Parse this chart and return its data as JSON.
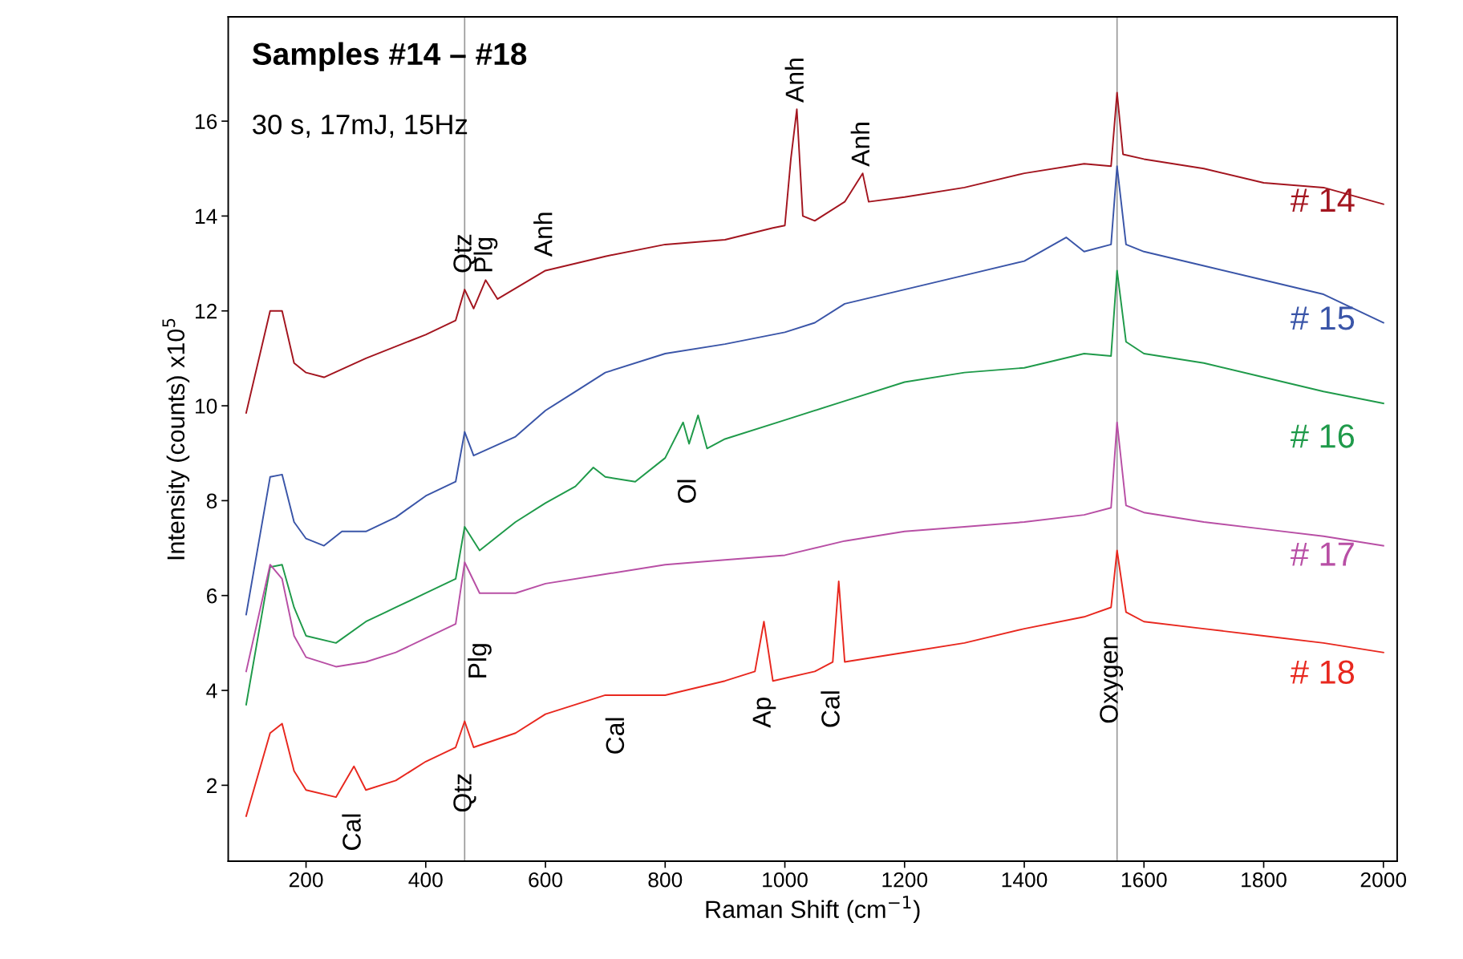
{
  "chart_data": {
    "type": "line",
    "title": "Samples #14 – #18",
    "subtitle": "30 s, 17mJ, 15Hz",
    "xlabel": "Raman Shift (cm$^{−1}$)",
    "ylabel": "Intensity (counts) x10$^{5}$",
    "xlim": [
      70,
      2023
    ],
    "ylim": [
      0.4,
      18.2
    ],
    "xticks": [
      200,
      400,
      600,
      800,
      1000,
      1200,
      1400,
      1600,
      1800,
      2000
    ],
    "yticks": [
      2,
      4,
      6,
      8,
      10,
      12,
      14,
      16
    ],
    "grid": false,
    "legend": "right",
    "series": [
      {
        "name": "# 14",
        "color": "#a3151f",
        "x": [
          100,
          140,
          160,
          180,
          200,
          230,
          300,
          400,
          450,
          465,
          480,
          500,
          520,
          600,
          700,
          800,
          900,
          980,
          1000,
          1010,
          1020,
          1030,
          1050,
          1100,
          1130,
          1140,
          1200,
          1300,
          1400,
          1500,
          1545,
          1555,
          1565,
          1600,
          1700,
          1800,
          1900,
          2000
        ],
        "values": [
          9.85,
          12.0,
          12.0,
          10.9,
          10.7,
          10.6,
          11.0,
          11.5,
          11.8,
          12.45,
          12.05,
          12.65,
          12.25,
          12.85,
          13.15,
          13.4,
          13.5,
          13.75,
          13.8,
          15.2,
          16.25,
          14.0,
          13.9,
          14.3,
          14.9,
          14.3,
          14.4,
          14.6,
          14.9,
          15.1,
          15.05,
          16.6,
          15.3,
          15.2,
          15.0,
          14.7,
          14.6,
          14.25
        ]
      },
      {
        "name": "# 15",
        "color": "#3a55a8",
        "x": [
          100,
          140,
          160,
          180,
          200,
          230,
          260,
          300,
          350,
          400,
          450,
          465,
          480,
          550,
          600,
          650,
          700,
          800,
          900,
          1000,
          1050,
          1100,
          1200,
          1300,
          1400,
          1470,
          1500,
          1545,
          1555,
          1570,
          1600,
          1700,
          1800,
          1900,
          2000
        ],
        "values": [
          5.6,
          8.5,
          8.55,
          7.55,
          7.2,
          7.05,
          7.35,
          7.35,
          7.65,
          8.1,
          8.4,
          9.45,
          8.95,
          9.35,
          9.9,
          10.3,
          10.7,
          11.1,
          11.3,
          11.55,
          11.75,
          12.15,
          12.45,
          12.75,
          13.05,
          13.55,
          13.25,
          13.4,
          15.05,
          13.4,
          13.25,
          12.95,
          12.65,
          12.35,
          11.75
        ]
      },
      {
        "name": "# 16",
        "color": "#1f9a4a",
        "x": [
          100,
          140,
          160,
          180,
          200,
          250,
          300,
          350,
          400,
          450,
          465,
          490,
          550,
          600,
          650,
          680,
          700,
          750,
          800,
          830,
          840,
          855,
          870,
          900,
          1000,
          1100,
          1200,
          1300,
          1400,
          1500,
          1545,
          1555,
          1570,
          1600,
          1700,
          1800,
          1900,
          2000
        ],
        "values": [
          3.7,
          6.6,
          6.65,
          5.75,
          5.15,
          5.0,
          5.45,
          5.75,
          6.05,
          6.35,
          7.45,
          6.95,
          7.55,
          7.95,
          8.3,
          8.7,
          8.5,
          8.4,
          8.9,
          9.65,
          9.2,
          9.8,
          9.1,
          9.3,
          9.7,
          10.1,
          10.5,
          10.7,
          10.8,
          11.1,
          11.05,
          12.85,
          11.35,
          11.1,
          10.9,
          10.6,
          10.3,
          10.05
        ]
      },
      {
        "name": "# 17",
        "color": "#b84fa5",
        "x": [
          100,
          140,
          160,
          180,
          200,
          250,
          300,
          350,
          400,
          450,
          465,
          490,
          550,
          600,
          700,
          800,
          900,
          1000,
          1100,
          1200,
          1300,
          1400,
          1500,
          1545,
          1555,
          1570,
          1600,
          1700,
          1800,
          1900,
          2000
        ],
        "values": [
          4.4,
          6.65,
          6.35,
          5.15,
          4.7,
          4.5,
          4.6,
          4.8,
          5.1,
          5.4,
          6.7,
          6.05,
          6.05,
          6.25,
          6.45,
          6.65,
          6.75,
          6.85,
          7.15,
          7.35,
          7.45,
          7.55,
          7.7,
          7.85,
          9.65,
          7.9,
          7.75,
          7.55,
          7.4,
          7.25,
          7.05
        ]
      },
      {
        "name": "# 18",
        "color": "#e8281f",
        "x": [
          100,
          140,
          160,
          180,
          200,
          250,
          280,
          300,
          350,
          400,
          450,
          465,
          480,
          550,
          600,
          700,
          720,
          800,
          900,
          950,
          965,
          980,
          1050,
          1080,
          1090,
          1100,
          1200,
          1300,
          1400,
          1500,
          1545,
          1555,
          1570,
          1600,
          1700,
          1800,
          1900,
          2000
        ],
        "values": [
          1.35,
          3.1,
          3.3,
          2.3,
          1.9,
          1.75,
          2.4,
          1.9,
          2.1,
          2.5,
          2.8,
          3.35,
          2.8,
          3.1,
          3.5,
          3.9,
          3.9,
          3.9,
          4.2,
          4.4,
          5.45,
          4.2,
          4.4,
          4.6,
          6.3,
          4.6,
          4.8,
          5.0,
          5.3,
          5.55,
          5.75,
          6.95,
          5.65,
          5.45,
          5.3,
          5.15,
          5.0,
          4.8
        ]
      }
    ],
    "ref_lines": [
      {
        "axis": "x",
        "value": 465,
        "color": "#999999"
      },
      {
        "axis": "x",
        "value": 1555,
        "color": "#999999"
      }
    ],
    "annotations": [
      {
        "text": "Qtz",
        "x": 465,
        "y": 12.45
      },
      {
        "text": "Plg",
        "x": 500,
        "y": 12.65
      },
      {
        "text": "Anh",
        "x": 600,
        "y": 12.85
      },
      {
        "text": "Anh",
        "x": 1020,
        "y": 16.25
      },
      {
        "text": "Anh",
        "x": 1130,
        "y": 14.9
      },
      {
        "text": "Ol",
        "x": 840,
        "y": 9.2
      },
      {
        "text": "Plg",
        "x": 490,
        "y": 6.05
      },
      {
        "text": "Cal",
        "x": 280,
        "y": 2.4
      },
      {
        "text": "Qtz",
        "x": 465,
        "y": 3.35
      },
      {
        "text": "Cal",
        "x": 720,
        "y": 3.9
      },
      {
        "text": "Ap",
        "x": 965,
        "y": 5.45
      },
      {
        "text": "Cal",
        "x": 1080,
        "y": 4.6
      },
      {
        "text": "Oxygen",
        "x": 1545,
        "y": 5.75
      }
    ]
  }
}
